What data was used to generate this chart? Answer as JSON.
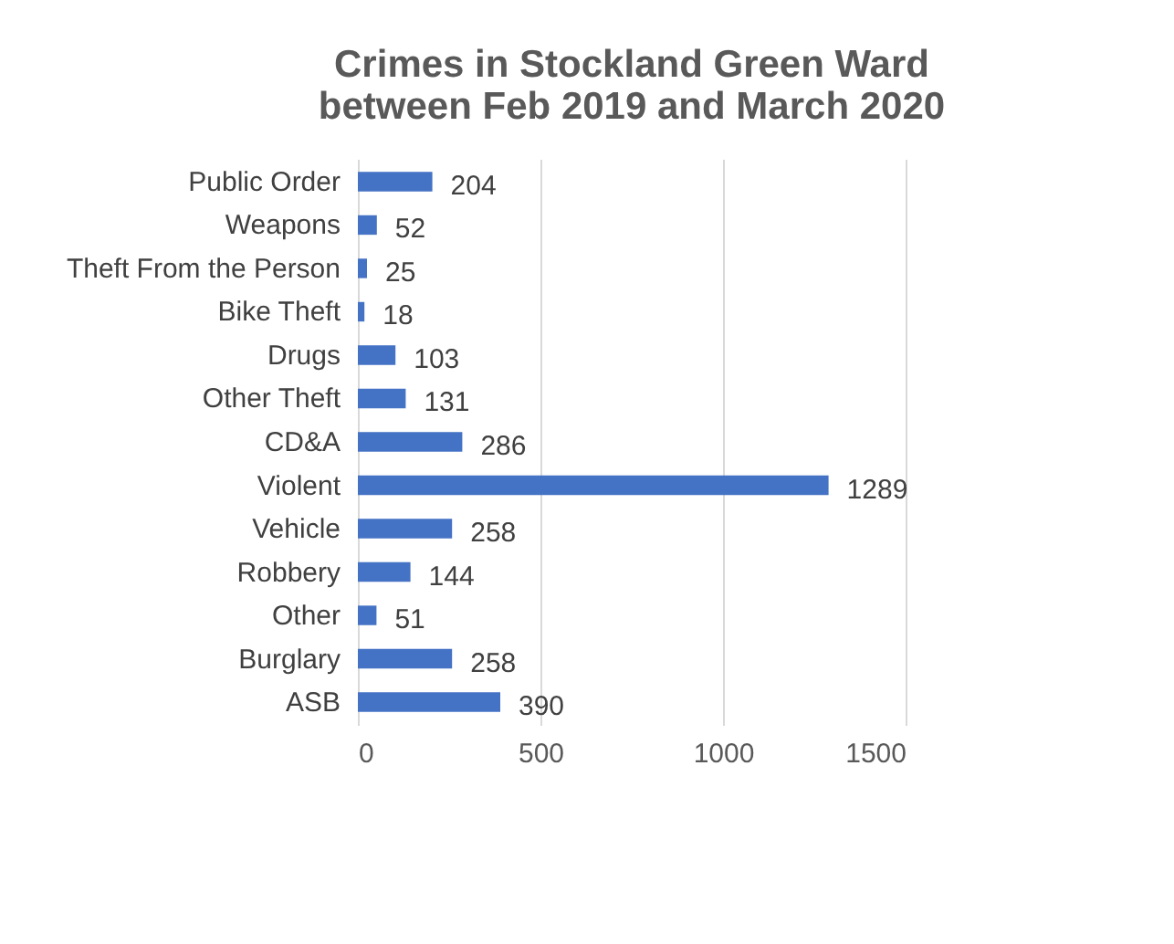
{
  "chart_data": {
    "type": "bar",
    "orientation": "horizontal",
    "title": "Crimes in Stockland Green Ward between Feb 2019 and March 2020",
    "categories": [
      "Public Order",
      "Weapons",
      "Theft From the Person",
      "Bike Theft",
      "Drugs",
      "Other Theft",
      "CD&A",
      "Violent",
      "Vehicle",
      "Robbery",
      "Other",
      "Burglary",
      "ASB"
    ],
    "values": [
      204,
      52,
      25,
      18,
      103,
      131,
      286,
      1289,
      258,
      144,
      51,
      258,
      390
    ],
    "color": "#4472c4",
    "xlim": [
      0,
      1500
    ],
    "xticks": [
      0,
      500,
      1000,
      1500
    ],
    "grid": "x",
    "data_labels": true
  }
}
